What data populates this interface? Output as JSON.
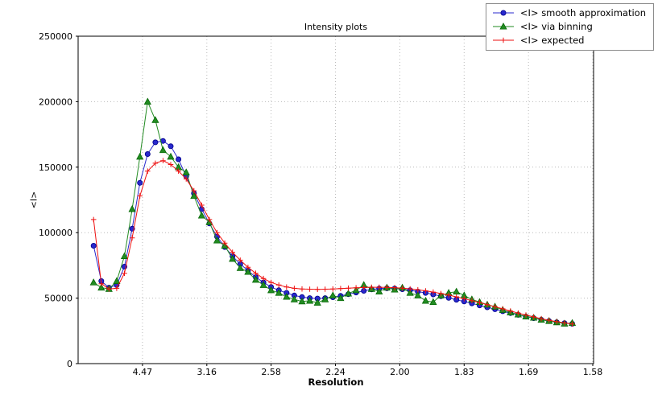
{
  "chart_data": {
    "type": "line",
    "title": "Intensity plots",
    "xlabel": "Resolution",
    "ylabel": "<I>",
    "grid": true,
    "legend_position": "top-right",
    "x_axis": {
      "scale": "resolution (linear in 1/d^2)",
      "range": [
        0,
        0.4006
      ],
      "tick_positions": [
        0.05,
        0.1,
        0.15,
        0.2,
        0.25,
        0.3,
        0.35,
        0.4
      ],
      "tick_labels": [
        "4.47",
        "3.16",
        "2.58",
        "2.24",
        "2.00",
        "1.83",
        "1.69",
        "1.58"
      ]
    },
    "y_axis": {
      "range": [
        0,
        250000
      ],
      "tick_positions": [
        0,
        50000,
        100000,
        150000,
        200000,
        250000
      ],
      "tick_labels": [
        "0",
        "50000",
        "100000",
        "150000",
        "200000",
        "250000"
      ]
    },
    "x": [
      0.012,
      0.018,
      0.024,
      0.03,
      0.036,
      0.042,
      0.048,
      0.054,
      0.06,
      0.066,
      0.072,
      0.078,
      0.084,
      0.09,
      0.096,
      0.102,
      0.108,
      0.114,
      0.12,
      0.126,
      0.132,
      0.138,
      0.144,
      0.15,
      0.156,
      0.162,
      0.168,
      0.174,
      0.18,
      0.186,
      0.192,
      0.198,
      0.204,
      0.21,
      0.216,
      0.222,
      0.228,
      0.234,
      0.24,
      0.246,
      0.252,
      0.258,
      0.264,
      0.27,
      0.276,
      0.282,
      0.288,
      0.294,
      0.3,
      0.306,
      0.312,
      0.318,
      0.324,
      0.33,
      0.336,
      0.342,
      0.348,
      0.354,
      0.36,
      0.366,
      0.372,
      0.378,
      0.384
    ],
    "series": [
      {
        "name": "<I> smooth approximation",
        "marker": "circle",
        "color": "#2828cd",
        "edge_color": "#00008b",
        "values": [
          90000,
          63000,
          58000,
          60000,
          74000,
          103000,
          138000,
          160000,
          169000,
          170000,
          166000,
          156000,
          143000,
          130000,
          118000,
          107000,
          97000,
          89000,
          82000,
          76000,
          71000,
          66000,
          62000,
          58500,
          56000,
          54000,
          52000,
          50800,
          50000,
          49700,
          50000,
          50700,
          51700,
          53000,
          54300,
          55600,
          56700,
          57300,
          57500,
          57300,
          56800,
          56000,
          55000,
          54000,
          52800,
          51500,
          50200,
          48800,
          47400,
          46000,
          44500,
          43000,
          41500,
          40000,
          38600,
          37200,
          35900,
          34700,
          33500,
          32500,
          31600,
          30900,
          30400
        ]
      },
      {
        "name": "<I> via binning",
        "marker": "triangle",
        "color": "#228b22",
        "edge_color": "#006400",
        "values": [
          62000,
          58000,
          57000,
          63000,
          82000,
          118000,
          158000,
          200000,
          186000,
          163000,
          158000,
          150000,
          146000,
          128000,
          113000,
          108000,
          94000,
          90000,
          80000,
          73000,
          70000,
          64000,
          60000,
          56000,
          54000,
          51000,
          49000,
          47500,
          48000,
          46500,
          49000,
          52000,
          50000,
          53500,
          56000,
          60000,
          57000,
          55000,
          58000,
          56500,
          58000,
          54000,
          52000,
          48000,
          47000,
          52000,
          54000,
          55000,
          52000,
          49000,
          47000,
          45000,
          43500,
          41000,
          39000,
          37500,
          36000,
          35000,
          33500,
          32500,
          31500,
          30500,
          31000
        ]
      },
      {
        "name": "<I> expected",
        "marker": "plus",
        "color": "#ee1111",
        "edge_color": "#cc0000",
        "values": [
          110000,
          61000,
          57000,
          57500,
          69000,
          96000,
          128000,
          147000,
          153000,
          155000,
          152000,
          147000,
          141000,
          132000,
          121000,
          110000,
          100000,
          92000,
          85000,
          79000,
          73500,
          69000,
          65000,
          62000,
          60000,
          58500,
          57500,
          57000,
          56800,
          56700,
          56800,
          57000,
          57300,
          57600,
          57900,
          58100,
          58300,
          58300,
          58200,
          58000,
          57600,
          57100,
          56400,
          55600,
          54600,
          53500,
          52300,
          51000,
          49600,
          48100,
          46600,
          45000,
          43400,
          41800,
          40200,
          38600,
          37100,
          35700,
          34300,
          33100,
          32000,
          31100,
          30300
        ]
      }
    ],
    "grid_color": "#b9b9b9",
    "frame_color": "#000000"
  }
}
